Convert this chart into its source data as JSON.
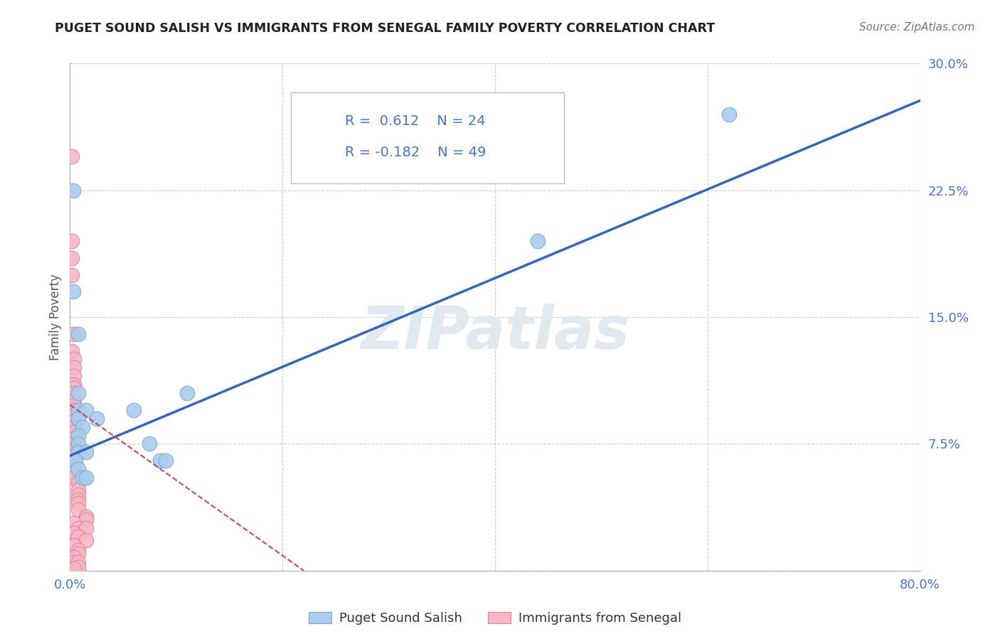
{
  "title": "PUGET SOUND SALISH VS IMMIGRANTS FROM SENEGAL FAMILY POVERTY CORRELATION CHART",
  "source": "Source: ZipAtlas.com",
  "ylabel": "Family Poverty",
  "xlim": [
    0,
    0.8
  ],
  "ylim": [
    0,
    0.3
  ],
  "xticks": [
    0.0,
    0.2,
    0.4,
    0.6,
    0.8
  ],
  "xticklabels": [
    "0.0%",
    "",
    "",
    "",
    "80.0%"
  ],
  "yticks": [
    0.0,
    0.075,
    0.15,
    0.225,
    0.3
  ],
  "yticklabels": [
    "",
    "7.5%",
    "15.0%",
    "22.5%",
    "30.0%"
  ],
  "background_color": "#ffffff",
  "watermark_text": "ZIPatlas",
  "legend_R_blue": "0.612",
  "legend_N_blue": "24",
  "legend_R_pink": "-0.182",
  "legend_N_pink": "49",
  "blue_scatter": [
    [
      0.003,
      0.225
    ],
    [
      0.003,
      0.165
    ],
    [
      0.008,
      0.14
    ],
    [
      0.008,
      0.105
    ],
    [
      0.008,
      0.095
    ],
    [
      0.015,
      0.095
    ],
    [
      0.008,
      0.09
    ],
    [
      0.012,
      0.085
    ],
    [
      0.008,
      0.08
    ],
    [
      0.008,
      0.075
    ],
    [
      0.008,
      0.07
    ],
    [
      0.015,
      0.07
    ],
    [
      0.005,
      0.065
    ],
    [
      0.008,
      0.06
    ],
    [
      0.012,
      0.055
    ],
    [
      0.015,
      0.055
    ],
    [
      0.025,
      0.09
    ],
    [
      0.06,
      0.095
    ],
    [
      0.075,
      0.075
    ],
    [
      0.085,
      0.065
    ],
    [
      0.09,
      0.065
    ],
    [
      0.11,
      0.105
    ],
    [
      0.44,
      0.195
    ],
    [
      0.62,
      0.27
    ]
  ],
  "pink_scatter": [
    [
      0.002,
      0.245
    ],
    [
      0.002,
      0.195
    ],
    [
      0.002,
      0.185
    ],
    [
      0.002,
      0.175
    ],
    [
      0.004,
      0.14
    ],
    [
      0.002,
      0.13
    ],
    [
      0.004,
      0.125
    ],
    [
      0.004,
      0.12
    ],
    [
      0.004,
      0.115
    ],
    [
      0.004,
      0.11
    ],
    [
      0.004,
      0.108
    ],
    [
      0.004,
      0.105
    ],
    [
      0.004,
      0.1
    ],
    [
      0.004,
      0.098
    ],
    [
      0.004,
      0.095
    ],
    [
      0.004,
      0.092
    ],
    [
      0.004,
      0.088
    ],
    [
      0.004,
      0.085
    ],
    [
      0.004,
      0.082
    ],
    [
      0.004,
      0.078
    ],
    [
      0.004,
      0.075
    ],
    [
      0.004,
      0.072
    ],
    [
      0.004,
      0.068
    ],
    [
      0.004,
      0.065
    ],
    [
      0.004,
      0.06
    ],
    [
      0.004,
      0.058
    ],
    [
      0.004,
      0.055
    ],
    [
      0.008,
      0.052
    ],
    [
      0.008,
      0.048
    ],
    [
      0.008,
      0.045
    ],
    [
      0.008,
      0.042
    ],
    [
      0.008,
      0.04
    ],
    [
      0.008,
      0.036
    ],
    [
      0.015,
      0.032
    ],
    [
      0.015,
      0.03
    ],
    [
      0.004,
      0.028
    ],
    [
      0.008,
      0.025
    ],
    [
      0.015,
      0.025
    ],
    [
      0.004,
      0.022
    ],
    [
      0.008,
      0.02
    ],
    [
      0.015,
      0.018
    ],
    [
      0.004,
      0.015
    ],
    [
      0.008,
      0.012
    ],
    [
      0.008,
      0.01
    ],
    [
      0.004,
      0.008
    ],
    [
      0.004,
      0.005
    ],
    [
      0.008,
      0.005
    ],
    [
      0.008,
      0.002
    ],
    [
      0.004,
      0.001
    ]
  ],
  "blue_line_x": [
    0.0,
    0.8
  ],
  "blue_line_y": [
    0.068,
    0.278
  ],
  "pink_line_x": [
    0.0,
    0.22
  ],
  "pink_line_y": [
    0.098,
    0.0
  ],
  "blue_color": "#aaccee",
  "pink_color": "#f4b8c4",
  "blue_edge_color": "#7aaad0",
  "pink_edge_color": "#e8809a",
  "blue_line_color": "#3366bb",
  "pink_line_color": "#cc4466",
  "grid_color": "#cccccc",
  "tick_label_color": "#4477cc",
  "ylabel_color": "#555555"
}
